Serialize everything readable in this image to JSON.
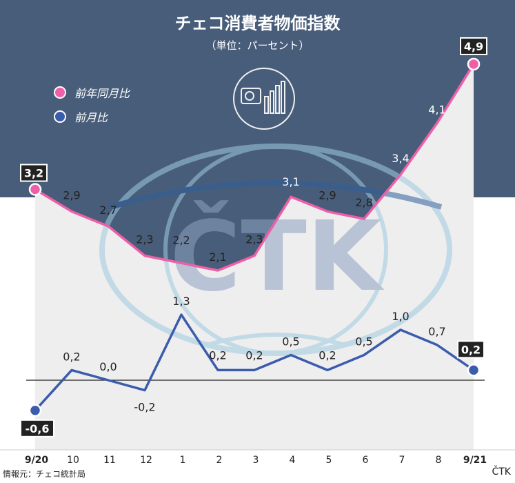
{
  "chart_data": {
    "type": "line",
    "title": "チェコ消費者物価指数",
    "subtitle": "（単位：パーセント）",
    "categories": [
      "9/20",
      "10",
      "11",
      "12",
      "1",
      "2",
      "3",
      "4",
      "5",
      "6",
      "7",
      "8",
      "9/21"
    ],
    "series": [
      {
        "name": "前年同月比",
        "color": "#ee5fa7",
        "values": [
          3.2,
          2.9,
          2.7,
          2.3,
          2.2,
          2.1,
          2.3,
          3.1,
          2.9,
          2.8,
          3.4,
          4.1,
          4.9
        ],
        "labels": [
          "3,2",
          "2,9",
          "2,7",
          "2,3",
          "2,2",
          "2,1",
          "2,3",
          "3,1",
          "2,9",
          "2,8",
          "3,4",
          "4,1",
          "4,9"
        ]
      },
      {
        "name": "前月比",
        "color": "#3b5bac",
        "values": [
          -0.6,
          0.2,
          0.0,
          -0.2,
          1.3,
          0.2,
          0.2,
          0.5,
          0.2,
          0.5,
          1.0,
          0.7,
          0.2
        ],
        "labels": [
          "-0,6",
          "0,2",
          "0,0",
          "-0,2",
          "1,3",
          "0,2",
          "0,2",
          "0,5",
          "0,2",
          "0,5",
          "1,0",
          "0,7",
          "0,2"
        ]
      }
    ],
    "grid": false,
    "legend": "top-left"
  },
  "colors": {
    "header_bg": "#485d79",
    "accent_pink": "#ee5fa7",
    "accent_blue": "#3b5bac"
  },
  "watermark_text": "ČTK",
  "footer": {
    "source": "情報元：チェコ統計局",
    "brand": "ČTK"
  }
}
